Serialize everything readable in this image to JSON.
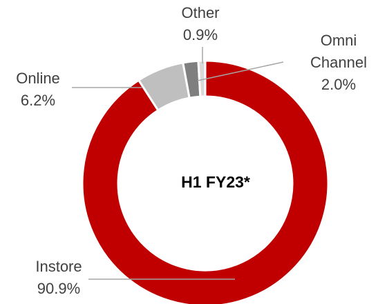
{
  "chart_data": {
    "type": "donut",
    "center_label": "H1 FY23*",
    "categories": [
      "Instore",
      "Online",
      "Omni Channel",
      "Other"
    ],
    "values": [
      90.9,
      6.2,
      2.0,
      0.9
    ],
    "value_labels": [
      "90.9%",
      "6.2%",
      "2.0%",
      "0.9%"
    ],
    "colors": [
      "#c00000",
      "#bfbfbf",
      "#7f7f7f",
      "#d9d9d9"
    ]
  }
}
